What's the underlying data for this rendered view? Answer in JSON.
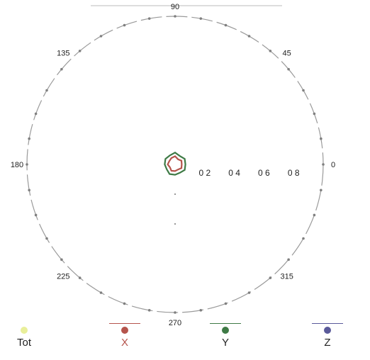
{
  "chart_data": {
    "type": "polar",
    "angle_labels": [
      "90",
      "45",
      "0",
      "315",
      "270",
      "225",
      "180",
      "135"
    ],
    "angle_values": [
      90,
      45,
      0,
      315,
      270,
      225,
      180,
      135
    ],
    "radial_tick_labels": [
      "0 2",
      "0 4",
      "0 6",
      "0 8"
    ],
    "radial_tick_values": [
      0.2,
      0.4,
      0.6,
      0.8
    ],
    "rlim": [
      0,
      1
    ],
    "legend_placement": "bottom",
    "series": [
      {
        "name": "Tot",
        "color": "#e9ef9a",
        "r": [
          0.0,
          0.0,
          0.0,
          0.0,
          0.0,
          0.0,
          0.0,
          0.0
        ]
      },
      {
        "name": "X",
        "color": "#b5544c",
        "theta": [
          0,
          30,
          60,
          90,
          120,
          150,
          180,
          210,
          240,
          270,
          300,
          330
        ],
        "r": [
          0.045,
          0.05,
          0.04,
          0.055,
          0.05,
          0.045,
          0.05,
          0.04,
          0.05,
          0.045,
          0.04,
          0.05
        ]
      },
      {
        "name": "Y",
        "color": "#3e7a45",
        "theta": [
          0,
          30,
          60,
          90,
          120,
          150,
          180,
          210,
          240,
          270,
          300,
          330
        ],
        "r": [
          0.07,
          0.075,
          0.065,
          0.08,
          0.07,
          0.075,
          0.07,
          0.065,
          0.075,
          0.07,
          0.065,
          0.075
        ]
      },
      {
        "name": "Z",
        "color": "#5a5a9a",
        "r": [
          0.0,
          0.0,
          0.0,
          0.0,
          0.0,
          0.0,
          0.0,
          0.0
        ]
      }
    ]
  },
  "legend": {
    "items": [
      {
        "label": "Tot",
        "color": "#e9ef9a"
      },
      {
        "label": "X",
        "color": "#b5544c"
      },
      {
        "label": "Y",
        "color": "#3e7a45"
      },
      {
        "label": "Z",
        "color": "#5a5a9a"
      }
    ]
  }
}
